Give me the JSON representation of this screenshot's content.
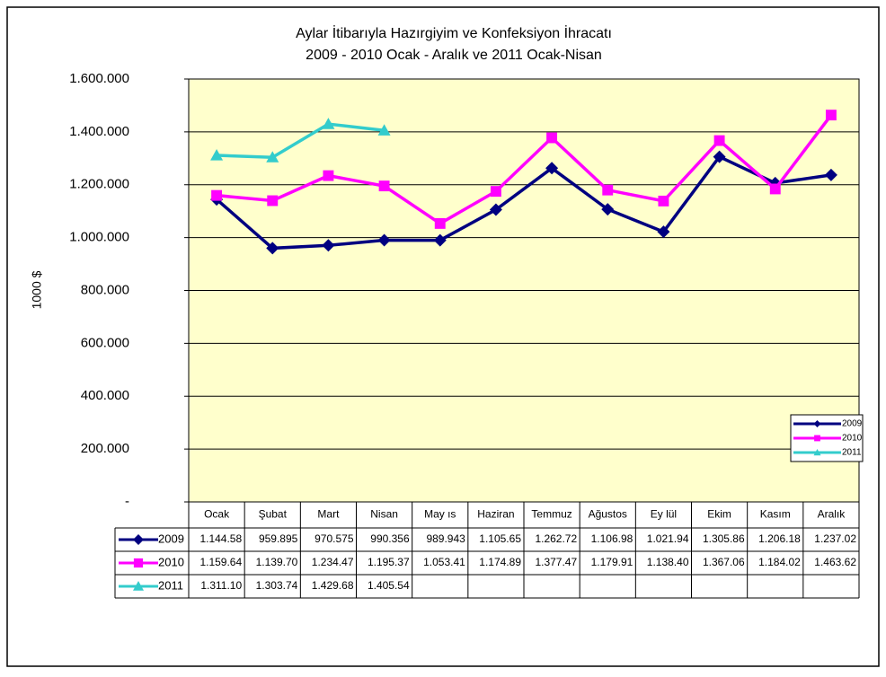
{
  "chart_data": {
    "type": "line",
    "title": [
      "Aylar İtibarıyla Hazırgiyim ve Konfeksiyon İhracatı",
      "2009 - 2010 Ocak - Aralık ve 2011 Ocak-Nisan"
    ],
    "y_label": "1000 $",
    "categories": [
      "Ocak",
      "Şubat",
      "Mart",
      "Nisan",
      "May ıs",
      "Haziran",
      "Temmuz",
      "Ağustos",
      "Ey lül",
      "Ekim",
      "Kasım",
      "Aralık"
    ],
    "series": [
      {
        "name": "2009",
        "color": "#000080",
        "marker": "diamond",
        "values": [
          1144580,
          959895,
          970575,
          990356,
          989943,
          1105650,
          1262720,
          1106980,
          1021940,
          1305860,
          1206180,
          1237020
        ],
        "value_labels": [
          "1.144.58",
          "959.895",
          "970.575",
          "990.356",
          "989.943",
          "1.105.65",
          "1.262.72",
          "1.106.98",
          "1.021.94",
          "1.305.86",
          "1.206.18",
          "1.237.02"
        ]
      },
      {
        "name": "2010",
        "color": "#ff00ff",
        "marker": "square",
        "values": [
          1159640,
          1139700,
          1234470,
          1195370,
          1053410,
          1174890,
          1377470,
          1179910,
          1138400,
          1367060,
          1184020,
          1463620
        ],
        "value_labels": [
          "1.159.64",
          "1.139.70",
          "1.234.47",
          "1.195.37",
          "1.053.41",
          "1.174.89",
          "1.377.47",
          "1.179.91",
          "1.138.40",
          "1.367.06",
          "1.184.02",
          "1.463.62"
        ]
      },
      {
        "name": "2011",
        "color": "#33cccc",
        "marker": "triangle",
        "values": [
          1311100,
          1303740,
          1429680,
          1405540,
          null,
          null,
          null,
          null,
          null,
          null,
          null,
          null
        ],
        "value_labels": [
          "1.311.10",
          "1.303.74",
          "1.429.68",
          "1.405.54",
          null,
          null,
          null,
          null,
          null,
          null,
          null,
          null
        ]
      }
    ],
    "ylim": [
      0,
      1600000
    ],
    "yticks": [
      {
        "value": 0,
        "label": "-"
      },
      {
        "value": 200000,
        "label": "200.000"
      },
      {
        "value": 400000,
        "label": "400.000"
      },
      {
        "value": 600000,
        "label": "600.000"
      },
      {
        "value": 800000,
        "label": "800.000"
      },
      {
        "value": 1000000,
        "label": "1.000.000"
      },
      {
        "value": 1200000,
        "label": "1.200.000"
      },
      {
        "value": 1400000,
        "label": "1.400.000"
      },
      {
        "value": 1600000,
        "label": "1.600.000"
      }
    ],
    "grid": true,
    "legend": "lower right",
    "plot_background": "#ffffcc"
  }
}
